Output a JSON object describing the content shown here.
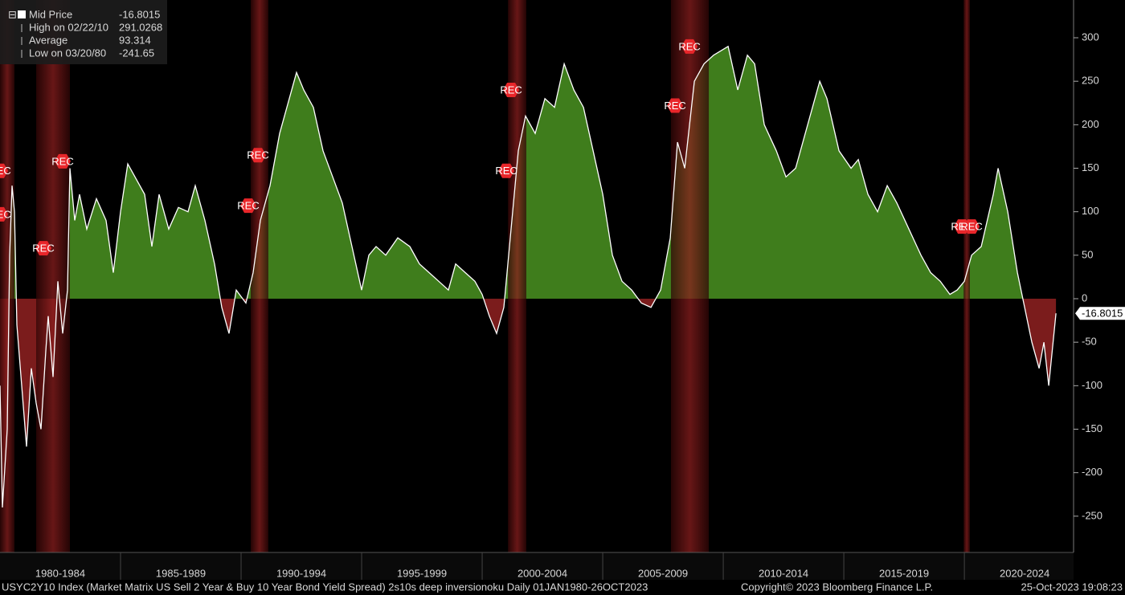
{
  "chart_data": {
    "type": "area",
    "x": [
      1980.0,
      1980.1,
      1980.3,
      1980.4,
      1980.5,
      1980.6,
      1980.7,
      1980.9,
      1981.1,
      1981.3,
      1981.5,
      1981.7,
      1981.9,
      1982.0,
      1982.2,
      1982.4,
      1982.6,
      1982.8,
      1982.9,
      1983.1,
      1983.3,
      1983.6,
      1984.0,
      1984.4,
      1984.7,
      1985.0,
      1985.3,
      1985.6,
      1986.0,
      1986.3,
      1986.6,
      1987.0,
      1987.4,
      1987.8,
      1988.1,
      1988.5,
      1988.9,
      1989.2,
      1989.5,
      1989.8,
      1990.2,
      1990.5,
      1990.8,
      1991.2,
      1991.6,
      1992.0,
      1992.3,
      1992.6,
      1993.0,
      1993.4,
      1993.8,
      1994.2,
      1994.6,
      1995.0,
      1995.3,
      1995.6,
      1996.0,
      1996.5,
      1997.0,
      1997.4,
      1997.8,
      1998.2,
      1998.6,
      1998.9,
      1999.3,
      1999.7,
      2000.0,
      2000.3,
      2000.6,
      2000.9,
      2001.2,
      2001.5,
      2001.8,
      2002.2,
      2002.6,
      2003.0,
      2003.4,
      2003.8,
      2004.2,
      2004.6,
      2005.0,
      2005.4,
      2005.8,
      2006.2,
      2006.6,
      2007.0,
      2007.4,
      2007.8,
      2008.1,
      2008.4,
      2008.8,
      2009.2,
      2009.6,
      2010.2,
      2010.6,
      2011.0,
      2011.3,
      2011.7,
      2012.2,
      2012.6,
      2013.0,
      2013.5,
      2014.0,
      2014.3,
      2014.8,
      2015.3,
      2015.6,
      2016.0,
      2016.4,
      2016.8,
      2017.2,
      2017.7,
      2018.2,
      2018.6,
      2019.0,
      2019.4,
      2019.7,
      2020.0,
      2020.3,
      2020.7,
      2021.2,
      2021.4,
      2021.8,
      2022.2,
      2022.5,
      2022.8,
      2023.1,
      2023.3,
      2023.5,
      2023.8
    ],
    "series": [
      {
        "name": "Mid Price",
        "color": "#ffffff",
        "values": [
          -100,
          -240,
          -150,
          50,
          130,
          100,
          -30,
          -100,
          -170,
          -80,
          -120,
          -150,
          -60,
          -20,
          -90,
          20,
          -40,
          10,
          150,
          90,
          120,
          80,
          115,
          90,
          30,
          100,
          155,
          140,
          120,
          60,
          120,
          80,
          105,
          100,
          130,
          90,
          40,
          -10,
          -40,
          10,
          -5,
          30,
          90,
          130,
          190,
          230,
          260,
          240,
          220,
          170,
          140,
          110,
          60,
          10,
          50,
          60,
          50,
          70,
          60,
          40,
          30,
          20,
          10,
          40,
          30,
          20,
          5,
          -20,
          -40,
          -10,
          80,
          170,
          210,
          190,
          230,
          220,
          270,
          240,
          220,
          170,
          120,
          50,
          20,
          10,
          -5,
          -10,
          10,
          70,
          180,
          150,
          250,
          270,
          280,
          290,
          240,
          280,
          270,
          200,
          170,
          140,
          150,
          200,
          250,
          230,
          170,
          150,
          160,
          120,
          100,
          130,
          110,
          80,
          50,
          30,
          20,
          5,
          10,
          20,
          50,
          60,
          120,
          150,
          100,
          30,
          -10,
          -50,
          -80,
          -50,
          -100,
          -16.8015
        ]
      }
    ],
    "positive_color": "#3f7d1c",
    "negative_color": "#7b1c1c",
    "recession_color": "#8a1e1e",
    "recessions": [
      {
        "start": 1980.0,
        "end": 1980.6
      },
      {
        "start": 1981.5,
        "end": 1982.9
      },
      {
        "start": 1990.4,
        "end": 1991.13
      },
      {
        "start": 2001.07,
        "end": 2001.83
      },
      {
        "start": 2007.83,
        "end": 2009.4
      },
      {
        "start": 2019.97,
        "end": 2020.23
      }
    ],
    "annotations": [
      {
        "x": 1980.0,
        "y": 147,
        "label": "REC"
      },
      {
        "x": 1980.0,
        "y": 97,
        "label": "REC"
      },
      {
        "x": 1981.8,
        "y": 58,
        "label": "REC"
      },
      {
        "x": 1982.6,
        "y": 158,
        "label": "REC"
      },
      {
        "x": 1990.3,
        "y": 107,
        "label": "REC"
      },
      {
        "x": 1990.7,
        "y": 165,
        "label": "REC"
      },
      {
        "x": 2001.0,
        "y": 147,
        "label": "REC"
      },
      {
        "x": 2001.2,
        "y": 240,
        "label": "REC"
      },
      {
        "x": 2008.0,
        "y": 222,
        "label": "REC"
      },
      {
        "x": 2008.6,
        "y": 290,
        "label": "REC"
      },
      {
        "x": 2019.9,
        "y": 83,
        "label": "REC"
      },
      {
        "x": 2020.3,
        "y": 83,
        "label": "REC"
      }
    ],
    "categories": [
      "1980-1984",
      "1985-1989",
      "1990-1994",
      "1995-1999",
      "2000-2004",
      "2005-2009",
      "2010-2014",
      "2015-2019",
      "2020-2024"
    ],
    "xlim": [
      1980,
      2024.53
    ],
    "ylim": [
      -291.7,
      343.4
    ],
    "yticks": [
      -250,
      -200,
      -150,
      -100,
      -50,
      0,
      50,
      100,
      150,
      200,
      250,
      300
    ],
    "legend": [
      {
        "label": "High on 02/22/10",
        "value": 291.0268
      },
      {
        "label": "Average",
        "value": 93.314
      },
      {
        "label": "Low on 03/20/80",
        "value": -241.65
      }
    ],
    "footer": {
      "description": "USYC2Y10 Index (Market Matrix US Sell 2 Year & Buy 10 Year Bond Yield Spread) 2s10s deep inversionoku  Daily 01JAN1980-26OCT2023",
      "copyright": "Copyright© 2023 Bloomberg Finance L.P.",
      "timestamp": "25-Oct-2023 19:08:23"
    }
  }
}
